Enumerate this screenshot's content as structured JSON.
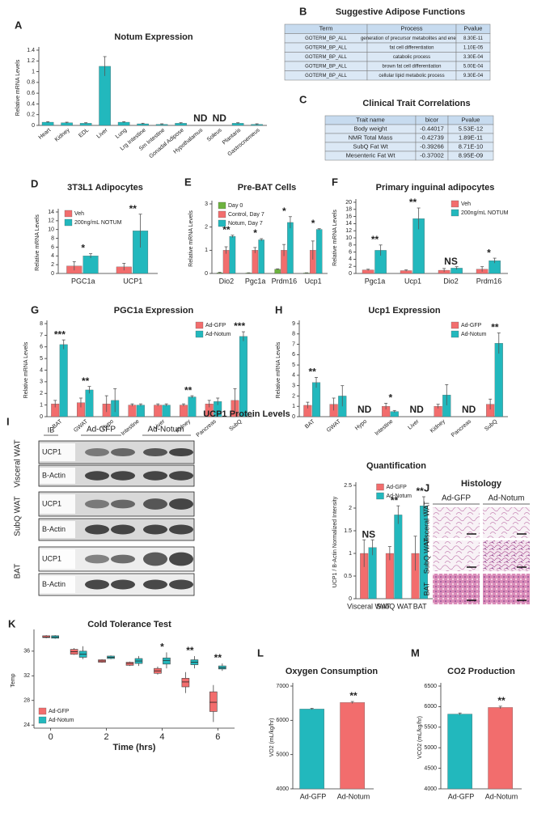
{
  "chart_data": [
    {
      "type": "bar",
      "panel": "A",
      "title": "Notum Expression",
      "ylabel": "Relative mRNA Levels",
      "categories": [
        "Heart",
        "Kidney",
        "EDL",
        "Liver",
        "Lung",
        "Lrg Intestine",
        "Sm Intestine",
        "Gonadal Adipose",
        "Hypothalamus",
        "Soleus",
        "Plantaris",
        "Gastrocnemeus"
      ],
      "values": [
        0.06,
        0.05,
        0.04,
        1.1,
        0.06,
        0.03,
        0.02,
        0.04,
        null,
        null,
        0.04,
        0.02
      ],
      "errors": [
        0.01,
        0.01,
        0.01,
        0.18,
        0.01,
        0.01,
        0.01,
        0.01,
        null,
        null,
        0.01,
        0.01
      ],
      "significance": [
        null,
        null,
        null,
        null,
        null,
        null,
        null,
        null,
        "ND",
        "ND",
        null,
        null
      ],
      "color": "#22b8bd",
      "ylim": [
        0,
        1.4
      ],
      "yticks": [
        0,
        0.2,
        0.4,
        0.6,
        0.8,
        1,
        1.2,
        1.4
      ]
    },
    {
      "type": "bar",
      "panel": "D",
      "title": "3T3L1 Adipocytes",
      "ylabel": "Relative mRNA Levels",
      "categories": [
        "PGC1a",
        "UCP1"
      ],
      "legend_loc": "upper left",
      "series": [
        {
          "name": "Veh",
          "color": "#f26d6d",
          "values": [
            1.7,
            1.5
          ],
          "errors": [
            1.0,
            0.8
          ]
        },
        {
          "name": "200ng/mL NOTUM",
          "color": "#22b8bd",
          "values": [
            4.0,
            9.7
          ],
          "errors": [
            0.5,
            3.8
          ]
        }
      ],
      "significance": [
        "*",
        "**"
      ],
      "ylim": [
        0,
        14
      ],
      "yticks": [
        0,
        2,
        4,
        6,
        8,
        10,
        12,
        14
      ]
    },
    {
      "type": "bar",
      "panel": "E",
      "title": "Pre-BAT Cells",
      "ylabel": "Relative mRNA Levels",
      "categories": [
        "Dio2",
        "Pgc1a",
        "Prdm16",
        "Ucp1"
      ],
      "legend_loc": "upper left",
      "series": [
        {
          "name": "Day 0",
          "color": "#6db33f",
          "values": [
            0.03,
            0.02,
            0.18,
            0.02
          ],
          "errors": [
            0.02,
            0.01,
            0.02,
            0.01
          ]
        },
        {
          "name": "Control, Day 7",
          "color": "#f26d6d",
          "values": [
            1.0,
            1.0,
            1.0,
            1.0
          ],
          "errors": [
            0.15,
            0.12,
            0.25,
            0.4
          ]
        },
        {
          "name": "Notum, Day 7",
          "color": "#22b8bd",
          "values": [
            1.6,
            1.45,
            2.2,
            1.9
          ],
          "errors": [
            0.05,
            0.05,
            0.25,
            0.03
          ]
        }
      ],
      "significance": [
        "**",
        "*",
        "*",
        "*"
      ],
      "ylim": [
        0,
        3
      ],
      "yticks": [
        0,
        1,
        2,
        3
      ]
    },
    {
      "type": "bar",
      "panel": "F",
      "title": "Primary inguinal adipocytes",
      "ylabel": "Relative mRNA Levels",
      "categories": [
        "Pgc1a",
        "Ucp1",
        "Dio2",
        "Prdm16"
      ],
      "legend_loc": "upper right",
      "series": [
        {
          "name": "Veh",
          "color": "#f26d6d",
          "values": [
            1.0,
            0.8,
            0.9,
            1.2
          ],
          "errors": [
            0.2,
            0.2,
            0.5,
            0.7
          ]
        },
        {
          "name": "200ng/mL NOTUM",
          "color": "#22b8bd",
          "values": [
            6.5,
            15.4,
            1.5,
            3.6
          ],
          "errors": [
            1.5,
            3.0,
            0.4,
            0.7
          ]
        }
      ],
      "significance": [
        "**",
        "**",
        "NS",
        "*"
      ],
      "ylim": [
        0,
        20
      ],
      "yticks": [
        0,
        2,
        4,
        6,
        8,
        10,
        12,
        14,
        16,
        18,
        20
      ]
    },
    {
      "type": "bar",
      "panel": "G",
      "title": "PGC1a Expression",
      "ylabel": "Relative mRNA Levels",
      "categories": [
        "BAT",
        "GWAT",
        "Hypo",
        "Intestine",
        "Liver",
        "Kidney",
        "Pancreas",
        "SubQ"
      ],
      "legend_loc": "upper right",
      "series": [
        {
          "name": "Ad-GFP",
          "color": "#f26d6d",
          "values": [
            1.1,
            1.2,
            1.1,
            1.0,
            1.0,
            1.0,
            1.1,
            1.4
          ],
          "errors": [
            0.3,
            0.4,
            0.7,
            0.1,
            0.1,
            0.1,
            0.3,
            1.0
          ]
        },
        {
          "name": "Ad-Notum",
          "color": "#22b8bd",
          "values": [
            6.2,
            2.3,
            1.4,
            1.0,
            1.0,
            1.7,
            1.3,
            6.9
          ],
          "errors": [
            0.4,
            0.3,
            1.0,
            0.1,
            0.1,
            0.1,
            0.3,
            0.4
          ]
        }
      ],
      "significance": [
        "***",
        "**",
        null,
        null,
        null,
        "**",
        null,
        "***"
      ],
      "ylim": [
        0,
        8
      ],
      "yticks": [
        0,
        1,
        2,
        3,
        4,
        5,
        6,
        7,
        8
      ]
    },
    {
      "type": "bar",
      "panel": "H",
      "title": "Ucp1 Expression",
      "ylabel": "Relative mRNA Levels",
      "categories": [
        "BAT",
        "GWAT",
        "Hypo",
        "Intestine",
        "Liver",
        "Kidney",
        "Pancreas",
        "SubQ"
      ],
      "legend_loc": "upper right",
      "series": [
        {
          "name": "Ad-GFP",
          "color": "#f26d6d",
          "values": [
            1.1,
            1.2,
            null,
            1.0,
            null,
            1.0,
            null,
            1.2
          ],
          "errors": [
            0.3,
            0.6,
            null,
            0.3,
            null,
            0.2,
            null,
            0.5
          ]
        },
        {
          "name": "Ad-Notum",
          "color": "#22b8bd",
          "values": [
            3.3,
            2.0,
            null,
            0.5,
            null,
            2.1,
            null,
            7.1
          ],
          "errors": [
            0.5,
            1.0,
            null,
            0.1,
            null,
            1.0,
            null,
            1.0
          ]
        }
      ],
      "significance": [
        "**",
        null,
        "ND",
        "*",
        "ND",
        null,
        "ND",
        "**"
      ],
      "ylim": [
        0,
        9
      ],
      "yticks": [
        0,
        1,
        2,
        3,
        4,
        5,
        6,
        7,
        8,
        9
      ]
    },
    {
      "type": "bar",
      "title": "Quantification",
      "ylabel": "UCP1 / B-Actin Normalized Intensity",
      "categories": [
        "Visceral WAT",
        "SubQ WAT",
        "BAT"
      ],
      "legend_loc": "upper center",
      "series": [
        {
          "name": "Ad-GFP",
          "color": "#f26d6d",
          "values": [
            1.0,
            1.0,
            1.0
          ],
          "errors": [
            0.3,
            0.15,
            0.38
          ]
        },
        {
          "name": "Ad-Notum",
          "color": "#22b8bd",
          "values": [
            1.13,
            1.85,
            2.05
          ],
          "errors": [
            0.17,
            0.2,
            0.2
          ]
        }
      ],
      "significance": [
        "NS",
        "**",
        "**"
      ],
      "ylim": [
        0,
        2.5
      ],
      "yticks": [
        0,
        0.5,
        1,
        1.5,
        2,
        2.5
      ]
    },
    {
      "type": "box",
      "panel": "K",
      "title": "Cold Tolerance Test",
      "xlabel": "Time (hrs)",
      "ylabel": "Temp",
      "x": [
        0,
        1,
        2,
        3,
        4,
        5,
        6
      ],
      "xlim": [
        -0.6,
        6.6
      ],
      "xticks": [
        0,
        2,
        4,
        6
      ],
      "ylim": [
        23.5,
        39
      ],
      "yticks": [
        24,
        28,
        32,
        36
      ],
      "legend_loc": "lower left",
      "series": [
        {
          "name": "Ad-GFP",
          "color": "#f26d6d",
          "whislo": [
            38.1,
            35.4,
            34.1,
            33.6,
            32.2,
            29.2,
            24.5
          ],
          "q1": [
            38.2,
            35.5,
            34.2,
            33.7,
            32.4,
            30.2,
            26.2
          ],
          "med": [
            38.3,
            35.9,
            34.4,
            34.0,
            32.8,
            31.0,
            27.7
          ],
          "q3": [
            38.5,
            36.3,
            34.6,
            34.2,
            33.2,
            31.6,
            29.4
          ],
          "whishi": [
            38.6,
            36.5,
            34.7,
            34.3,
            33.5,
            32.6,
            30.5
          ]
        },
        {
          "name": "Ad-Notum",
          "color": "#22b8bd",
          "whislo": [
            38.0,
            34.7,
            34.7,
            33.6,
            33.2,
            33.2,
            32.8
          ],
          "q1": [
            38.1,
            35.0,
            34.8,
            34.0,
            33.9,
            33.8,
            33.1
          ],
          "med": [
            38.3,
            35.5,
            35.0,
            34.4,
            34.5,
            34.2,
            33.3
          ],
          "q3": [
            38.5,
            36.0,
            35.2,
            34.8,
            34.9,
            34.6,
            33.6
          ],
          "whishi": [
            38.6,
            36.8,
            35.3,
            35.2,
            35.8,
            35.2,
            34.0
          ]
        }
      ],
      "significance": [
        null,
        null,
        null,
        null,
        "*",
        "**",
        "**"
      ]
    },
    {
      "type": "bar",
      "panel": "L",
      "title": "Oxygen Consumption",
      "ylabel": "VO2 (mL/kg/hr)",
      "categories": [
        "Ad-GFP",
        "Ad-Notum"
      ],
      "values": [
        6330,
        6520
      ],
      "errors": [
        20,
        30
      ],
      "colors": [
        "#22b8bd",
        "#f26d6d"
      ],
      "significance": [
        null,
        "**"
      ],
      "ylim": [
        4000,
        7000
      ],
      "yticks": [
        4000,
        5000,
        6000,
        7000
      ]
    },
    {
      "type": "bar",
      "panel": "M",
      "title": "CO2 Production",
      "ylabel": "VCO2 (mL/kg/hr)",
      "categories": [
        "Ad-GFP",
        "Ad-Notum"
      ],
      "values": [
        5820,
        5980
      ],
      "errors": [
        25,
        30
      ],
      "colors": [
        "#22b8bd",
        "#f26d6d"
      ],
      "significance": [
        null,
        "**"
      ],
      "ylim": [
        4000,
        6500
      ],
      "yticks": [
        4000,
        4500,
        5000,
        5500,
        6000,
        6500
      ]
    }
  ],
  "tables": [
    {
      "panel": "B",
      "title": "Suggestive Adipose Functions",
      "header": [
        "Term",
        "Process",
        "Pvalue"
      ],
      "rows": [
        [
          "GOTERM_BP_ALL",
          "generation of precursor metabolites and energy",
          "8.30E-11"
        ],
        [
          "GOTERM_BP_ALL",
          "fat cell differentiation",
          "1.10E-05"
        ],
        [
          "GOTERM_BP_ALL",
          "catabolic process",
          "3.30E-04"
        ],
        [
          "GOTERM_BP_ALL",
          "brown fat cell differentiation",
          "5.00E-04"
        ],
        [
          "GOTERM_BP_ALL",
          "cellular lipid metabolic process",
          "9.30E-04"
        ]
      ]
    },
    {
      "panel": "C",
      "title": "Clinical Trait Correlations",
      "header": [
        "Trait name",
        "bicor",
        "Pvalue"
      ],
      "rows": [
        [
          "Body weight",
          "-0.44017",
          "5.53E-12"
        ],
        [
          "NMR Total Mass",
          "-0.42739",
          "1.89E-11"
        ],
        [
          "SubQ Fat Wt",
          "-0.39266",
          "8.71E-10"
        ],
        [
          "Mesenteric Fat Wt",
          "-0.37002",
          "8.95E-09"
        ]
      ]
    }
  ],
  "blot": {
    "panel": "I",
    "title": "UCP1 Protein Levels",
    "ib": "IB",
    "groups": [
      "Ad-GFP",
      "Ad-Notum"
    ],
    "tissues": [
      {
        "name": "Visceral WAT",
        "proteins": [
          "UCP1",
          "B-Actin"
        ]
      },
      {
        "name": "SubQ WAT",
        "proteins": [
          "UCP1",
          "B-Actin"
        ]
      },
      {
        "name": "BAT",
        "proteins": [
          "UCP1",
          "B-Actin"
        ]
      }
    ]
  },
  "histology": {
    "panel": "J",
    "title": "Histology",
    "groups": [
      "Ad-GFP",
      "Ad-Notum"
    ],
    "tissues": [
      "Visceral WAT",
      "SubQ WAT",
      "BAT"
    ]
  }
}
